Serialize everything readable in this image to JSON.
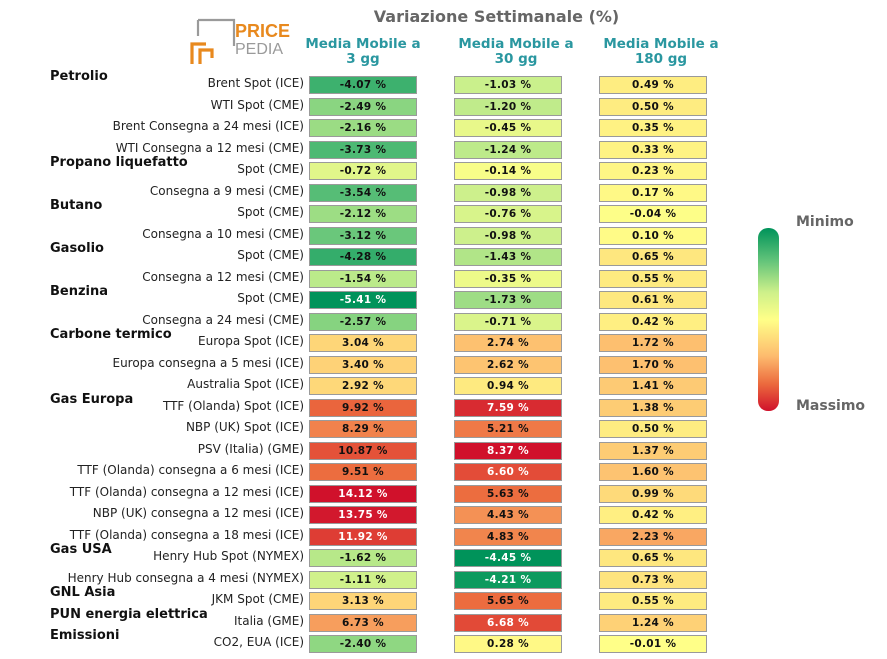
{
  "title": "Variazione Settimanale (%)",
  "logo": {
    "line1": "PRICE",
    "line2": "PEDIA"
  },
  "legend": {
    "min_label": "Minimo",
    "max_label": "Massimo"
  },
  "columns": [
    {
      "line1": "Media Mobile a",
      "line2": "3 gg"
    },
    {
      "line1": "Media Mobile a",
      "line2": "30 gg"
    },
    {
      "line1": "Media Mobile a",
      "line2": "180 gg"
    }
  ],
  "groups": [
    "Petrolio",
    "Propano liquefatto",
    "Butano",
    "Gasolio",
    "Benzina",
    "Carbone termico",
    "Gas Europa",
    "Gas USA",
    "GNL Asia",
    "PUN energia elettrica",
    "Emissioni"
  ],
  "chart_data": {
    "type": "table",
    "title": "Variazione Settimanale (%)",
    "columns": [
      "Media Mobile a 3 gg",
      "Media Mobile a 30 gg",
      "Media Mobile a 180 gg"
    ],
    "rows": [
      {
        "group": "Petrolio",
        "label": "Brent Spot (ICE)",
        "values": [
          -4.07,
          -1.03,
          0.49
        ]
      },
      {
        "group": "",
        "label": "WTI Spot (CME)",
        "values": [
          -2.49,
          -1.2,
          0.5
        ]
      },
      {
        "group": "",
        "label": "Brent Consegna a 24 mesi (ICE)",
        "values": [
          -2.16,
          -0.45,
          0.35
        ]
      },
      {
        "group": "",
        "label": "WTI Consegna a 12 mesi (CME)",
        "values": [
          -3.73,
          -1.24,
          0.33
        ]
      },
      {
        "group": "Propano liquefatto",
        "label": "Spot (CME)",
        "values": [
          -0.72,
          -0.14,
          0.23
        ]
      },
      {
        "group": "",
        "label": "Consegna a 9 mesi (CME)",
        "values": [
          -3.54,
          -0.98,
          0.17
        ]
      },
      {
        "group": "Butano",
        "label": "Spot (CME)",
        "values": [
          -2.12,
          -0.76,
          -0.04
        ]
      },
      {
        "group": "",
        "label": "Consegna a 10 mesi (CME)",
        "values": [
          -3.12,
          -0.98,
          0.1
        ]
      },
      {
        "group": "Gasolio",
        "label": "Spot (CME)",
        "values": [
          -4.28,
          -1.43,
          0.65
        ]
      },
      {
        "group": "",
        "label": "Consegna a 12 mesi (CME)",
        "values": [
          -1.54,
          -0.35,
          0.55
        ]
      },
      {
        "group": "Benzina",
        "label": "Spot (CME)",
        "values": [
          -5.41,
          -1.73,
          0.61
        ]
      },
      {
        "group": "",
        "label": "Consegna a 24 mesi (CME)",
        "values": [
          -2.57,
          -0.71,
          0.42
        ]
      },
      {
        "group": "Carbone termico",
        "label": "Europa Spot (ICE)",
        "values": [
          3.04,
          2.74,
          1.72
        ]
      },
      {
        "group": "",
        "label": "Europa consegna a 5 mesi (ICE)",
        "values": [
          3.4,
          2.62,
          1.7
        ]
      },
      {
        "group": "",
        "label": "Australia Spot (ICE)",
        "values": [
          2.92,
          0.94,
          1.41
        ]
      },
      {
        "group": "Gas Europa",
        "label": "TTF (Olanda) Spot (ICE)",
        "values": [
          9.92,
          7.59,
          1.38
        ]
      },
      {
        "group": "",
        "label": "NBP (UK) Spot (ICE)",
        "values": [
          8.29,
          5.21,
          0.5
        ]
      },
      {
        "group": "",
        "label": "PSV (Italia) (GME)",
        "values": [
          10.87,
          8.37,
          1.37
        ]
      },
      {
        "group": "",
        "label": "TTF (Olanda) consegna a 6 mesi (ICE)",
        "values": [
          9.51,
          6.6,
          1.6
        ]
      },
      {
        "group": "",
        "label": "TTF (Olanda) consegna a 12 mesi (ICE)",
        "values": [
          14.12,
          5.63,
          0.99
        ]
      },
      {
        "group": "",
        "label": "NBP (UK) consegna a 12 mesi (ICE)",
        "values": [
          13.75,
          4.43,
          0.42
        ]
      },
      {
        "group": "",
        "label": "TTF (Olanda) consegna a 18 mesi (ICE)",
        "values": [
          11.92,
          4.83,
          2.23
        ]
      },
      {
        "group": "Gas USA",
        "label": "Henry Hub Spot (NYMEX)",
        "values": [
          -1.62,
          -4.45,
          0.65
        ]
      },
      {
        "group": "",
        "label": "Henry Hub consegna a 4 mesi (NYMEX)",
        "values": [
          -1.11,
          -4.21,
          0.73
        ]
      },
      {
        "group": "GNL Asia",
        "label": "JKM Spot (CME)",
        "values": [
          3.13,
          5.65,
          0.55
        ]
      },
      {
        "group": "PUN energia elettrica",
        "label": "Italia (GME)",
        "values": [
          6.73,
          6.68,
          1.24
        ]
      },
      {
        "group": "Emissioni",
        "label": "CO2, EUA (ICE)",
        "values": [
          -2.4,
          0.28,
          -0.01
        ]
      }
    ],
    "unit": "%",
    "colorscale": [
      "#00935a",
      "#ffff88",
      "#d0112b"
    ]
  }
}
